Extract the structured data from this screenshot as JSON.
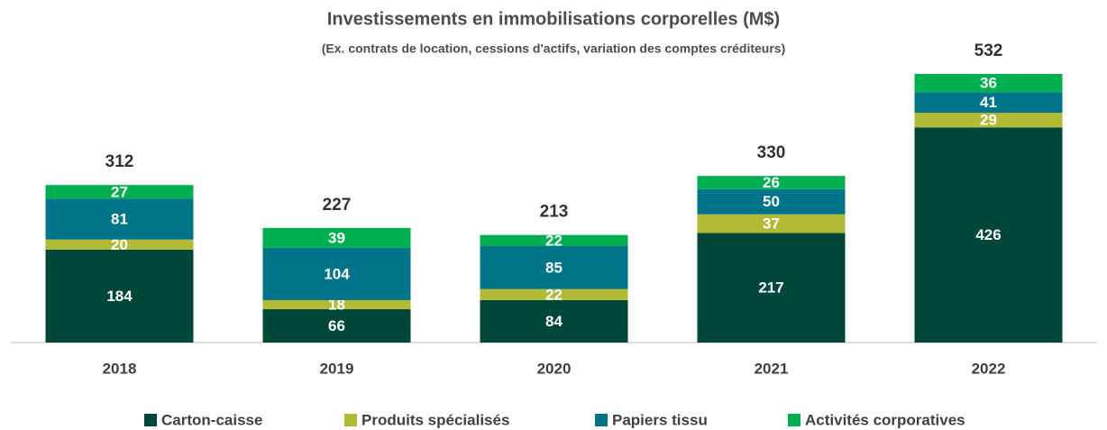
{
  "chart_data": {
    "type": "stacked-bar",
    "title": "Investissements en immobilisations corporelles (M$)",
    "subtitle": "(Ex. contrats de location, cessions d'actifs, variation des comptes créditeurs)",
    "categories": [
      "2018",
      "2019",
      "2020",
      "2021",
      "2022"
    ],
    "series": [
      {
        "name": "Carton-caisse",
        "color": "#00473a",
        "values": [
          184,
          66,
          84,
          217,
          426
        ]
      },
      {
        "name": "Produits spécialisés",
        "color": "#b3bb36",
        "values": [
          20,
          18,
          22,
          37,
          29
        ]
      },
      {
        "name": "Papiers tissu",
        "color": "#00758a",
        "values": [
          81,
          104,
          85,
          50,
          41
        ]
      },
      {
        "name": "Activités corporatives",
        "color": "#00b050",
        "values": [
          27,
          39,
          22,
          26,
          36
        ]
      }
    ],
    "totals": [
      312,
      227,
      213,
      330,
      532
    ],
    "legend": "bottom"
  }
}
